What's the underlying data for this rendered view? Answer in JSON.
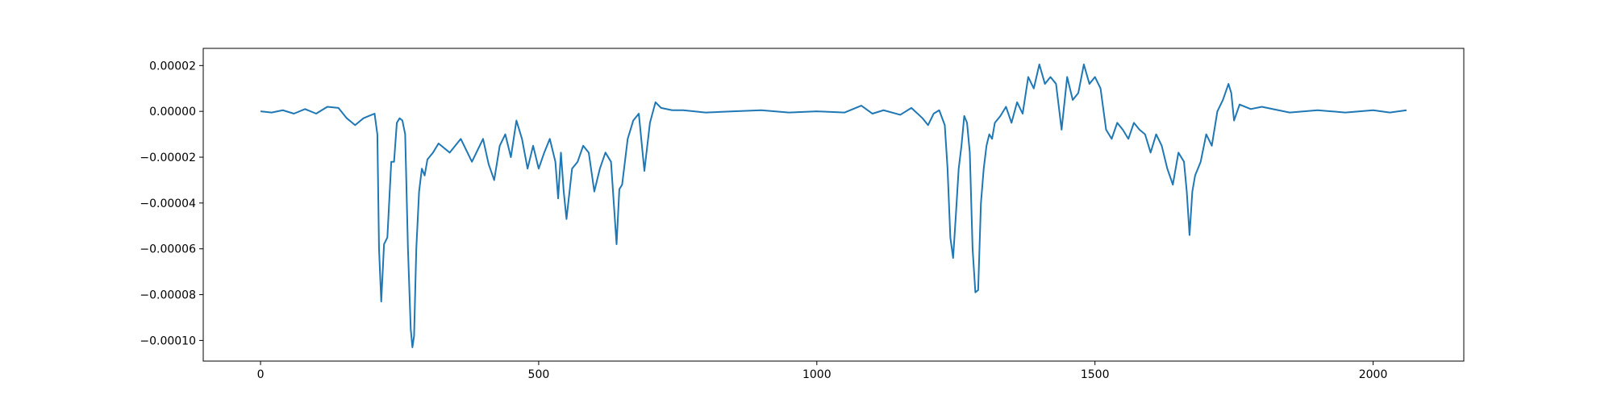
{
  "chart_data": {
    "type": "line",
    "title": "",
    "xlabel": "",
    "ylabel": "",
    "xlim": [
      -103,
      2163
    ],
    "ylim": [
      -0.000109,
      2.75e-05
    ],
    "x_ticks": [
      {
        "value": 0,
        "label": "0"
      },
      {
        "value": 500,
        "label": "500"
      },
      {
        "value": 1000,
        "label": "1000"
      },
      {
        "value": 1500,
        "label": "1500"
      },
      {
        "value": 2000,
        "label": "2000"
      }
    ],
    "y_ticks": [
      {
        "value": 2e-05,
        "label": "0.00002"
      },
      {
        "value": 0.0,
        "label": "0.00000"
      },
      {
        "value": -2e-05,
        "label": "−0.00002"
      },
      {
        "value": -4e-05,
        "label": "−0.00004"
      },
      {
        "value": -6e-05,
        "label": "−0.00006"
      },
      {
        "value": -8e-05,
        "label": "−0.00008"
      },
      {
        "value": -0.0001,
        "label": "−0.00010"
      }
    ],
    "grid": false,
    "series": [
      {
        "color": "#1f77b4",
        "x": [
          0,
          20,
          40,
          60,
          80,
          100,
          120,
          140,
          155,
          170,
          185,
          195,
          205,
          210,
          213,
          217,
          222,
          228,
          235,
          240,
          245,
          250,
          255,
          260,
          265,
          270,
          273,
          276,
          280,
          285,
          290,
          295,
          300,
          310,
          320,
          340,
          360,
          380,
          400,
          410,
          420,
          430,
          440,
          450,
          460,
          470,
          480,
          490,
          500,
          510,
          520,
          530,
          535,
          540,
          545,
          550,
          560,
          570,
          580,
          590,
          600,
          610,
          620,
          630,
          635,
          640,
          645,
          650,
          660,
          670,
          680,
          690,
          700,
          710,
          720,
          740,
          760,
          800,
          850,
          900,
          950,
          1000,
          1050,
          1080,
          1100,
          1120,
          1150,
          1170,
          1190,
          1200,
          1210,
          1220,
          1230,
          1235,
          1240,
          1245,
          1250,
          1255,
          1260,
          1265,
          1270,
          1275,
          1280,
          1285,
          1290,
          1295,
          1300,
          1305,
          1310,
          1315,
          1320,
          1330,
          1340,
          1350,
          1360,
          1370,
          1380,
          1390,
          1400,
          1410,
          1420,
          1430,
          1440,
          1450,
          1460,
          1470,
          1480,
          1490,
          1500,
          1510,
          1520,
          1530,
          1540,
          1550,
          1560,
          1570,
          1580,
          1590,
          1600,
          1610,
          1620,
          1630,
          1640,
          1650,
          1660,
          1665,
          1670,
          1675,
          1680,
          1690,
          1700,
          1710,
          1720,
          1730,
          1740,
          1745,
          1750,
          1760,
          1780,
          1800,
          1850,
          1900,
          1950,
          2000,
          2030,
          2060
        ],
        "y": [
          0.0,
          -5e-07,
          5e-07,
          -1e-06,
          1e-06,
          -1e-06,
          2e-06,
          1.5e-06,
          -3e-06,
          -6e-06,
          -3e-06,
          -2e-06,
          -1e-06,
          -1e-05,
          -6e-05,
          -8.3e-05,
          -5.8e-05,
          -5.5e-05,
          -2.2e-05,
          -2.2e-05,
          -5e-06,
          -3e-06,
          -4e-06,
          -1e-05,
          -6e-05,
          -9.5e-05,
          -0.000103,
          -9.8e-05,
          -6e-05,
          -3.5e-05,
          -2.5e-05,
          -2.8e-05,
          -2.1e-05,
          -1.8e-05,
          -1.4e-05,
          -1.8e-05,
          -1.2e-05,
          -2.2e-05,
          -1.2e-05,
          -2.3e-05,
          -3e-05,
          -1.5e-05,
          -1e-05,
          -2e-05,
          -4e-06,
          -1.2e-05,
          -2.5e-05,
          -1.5e-05,
          -2.5e-05,
          -1.8e-05,
          -1.2e-05,
          -2.2e-05,
          -3.8e-05,
          -1.8e-05,
          -3.5e-05,
          -4.7e-05,
          -2.5e-05,
          -2.2e-05,
          -1.5e-05,
          -1.8e-05,
          -3.5e-05,
          -2.5e-05,
          -1.8e-05,
          -2.2e-05,
          -4e-05,
          -5.8e-05,
          -3.4e-05,
          -3.2e-05,
          -1.2e-05,
          -4e-06,
          -1e-06,
          -2.6e-05,
          -5e-06,
          4e-06,
          1.5e-06,
          5e-07,
          5e-07,
          -5e-07,
          0.0,
          5e-07,
          -5e-07,
          0.0,
          -5e-07,
          2.5e-06,
          -1e-06,
          5e-07,
          -1.5e-06,
          1.5e-06,
          -3e-06,
          -6e-06,
          -1e-06,
          5e-07,
          -6e-06,
          -2.5e-05,
          -5.5e-05,
          -6.4e-05,
          -4.5e-05,
          -2.5e-05,
          -1.5e-05,
          -2e-06,
          -5e-06,
          -1.8e-05,
          -6e-05,
          -7.9e-05,
          -7.8e-05,
          -4e-05,
          -2.5e-05,
          -1.5e-05,
          -1e-05,
          -1.2e-05,
          -5e-06,
          -2e-06,
          2e-06,
          -5e-06,
          4e-06,
          -1e-06,
          1.5e-05,
          1e-05,
          2.05e-05,
          1.2e-05,
          1.5e-05,
          1.2e-05,
          -8e-06,
          1.5e-05,
          5e-06,
          8e-06,
          2.05e-05,
          1.2e-05,
          1.5e-05,
          1e-05,
          -8e-06,
          -1.2e-05,
          -5e-06,
          -8e-06,
          -1.2e-05,
          -5e-06,
          -8e-06,
          -1e-05,
          -1.8e-05,
          -1e-05,
          -1.5e-05,
          -2.5e-05,
          -3.2e-05,
          -1.8e-05,
          -2.2e-05,
          -3.5e-05,
          -5.4e-05,
          -3.5e-05,
          -2.8e-05,
          -2.2e-05,
          -1e-05,
          -1.5e-05,
          0.0,
          5e-06,
          1.2e-05,
          8e-06,
          -4e-06,
          3e-06,
          1e-06,
          2e-06,
          -5e-07,
          5e-07,
          -5e-07,
          5e-07,
          -5e-07,
          5e-07
        ]
      }
    ]
  }
}
